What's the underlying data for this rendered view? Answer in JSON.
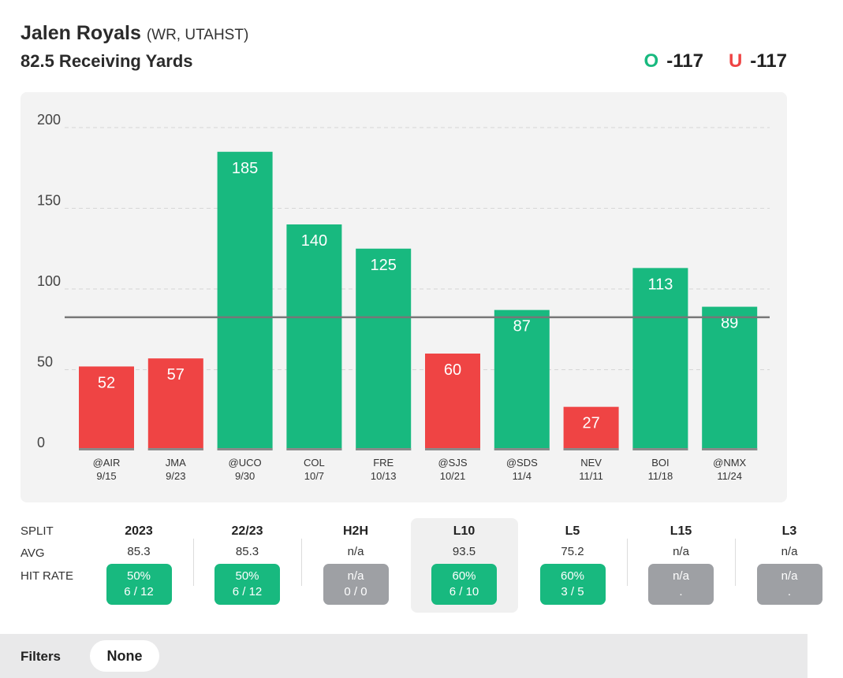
{
  "header": {
    "player_name": "Jalen Royals",
    "player_meta": "(WR, UTAHST)",
    "prop_line": "82.5 Receiving Yards",
    "over_indicator": "O",
    "over_odds": "-117",
    "under_indicator": "U",
    "under_odds": "-117"
  },
  "colors": {
    "over": "#18b97f",
    "under": "#ef4444",
    "line": "#777777",
    "na": "#9ea0a4"
  },
  "chart_data": {
    "type": "bar",
    "title": "",
    "xlabel": "",
    "ylabel": "",
    "ylim": [
      0,
      200
    ],
    "yticks": [
      0,
      50,
      100,
      150,
      200
    ],
    "threshold": 82.5,
    "categories": [
      "@AIR",
      "JMA",
      "@UCO",
      "COL",
      "FRE",
      "@SJS",
      "@SDS",
      "NEV",
      "BOI",
      "@NMX"
    ],
    "dates": [
      "9/15",
      "9/23",
      "9/30",
      "10/7",
      "10/13",
      "10/21",
      "11/4",
      "11/11",
      "11/18",
      "11/24"
    ],
    "values": [
      52,
      57,
      185,
      140,
      125,
      60,
      87,
      27,
      113,
      89
    ],
    "results": [
      "under",
      "under",
      "over",
      "over",
      "over",
      "under",
      "over",
      "under",
      "over",
      "over"
    ]
  },
  "splits": {
    "row_labels": {
      "split": "SPLIT",
      "avg": "AVG",
      "hit_rate": "HIT RATE"
    },
    "columns": [
      {
        "name": "2023",
        "avg": "85.3",
        "pct": "50%",
        "record": "6 / 12",
        "status": "green"
      },
      {
        "name": "22/23",
        "avg": "85.3",
        "pct": "50%",
        "record": "6 / 12",
        "status": "green"
      },
      {
        "name": "H2H",
        "avg": "n/a",
        "pct": "n/a",
        "record": "0 / 0",
        "status": "gray"
      },
      {
        "name": "L10",
        "avg": "93.5",
        "pct": "60%",
        "record": "6 / 10",
        "status": "green",
        "selected": true
      },
      {
        "name": "L5",
        "avg": "75.2",
        "pct": "60%",
        "record": "3 / 5",
        "status": "green"
      },
      {
        "name": "L15",
        "avg": "n/a",
        "pct": "n/a",
        "record": ".",
        "status": "gray"
      },
      {
        "name": "L3",
        "avg": "n/a",
        "pct": "n/a",
        "record": ".",
        "status": "gray"
      }
    ]
  },
  "filters": {
    "label": "Filters",
    "value": "None"
  }
}
